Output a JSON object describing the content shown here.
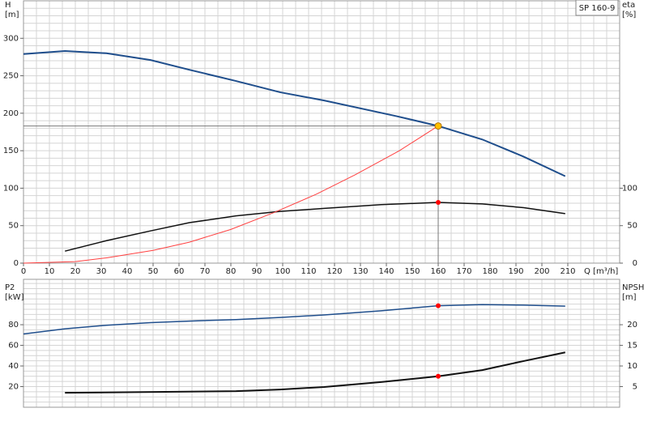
{
  "chart_data": [
    {
      "type": "line",
      "title": "SP 160-9",
      "y_label": [
        "H",
        "[m]"
      ],
      "y2_label": [
        "eta",
        "[%]"
      ],
      "x_label": "Q [m³/h]",
      "xlim": [
        0,
        230
      ],
      "xticks": [
        0,
        10,
        20,
        30,
        40,
        50,
        60,
        70,
        80,
        90,
        100,
        110,
        120,
        130,
        140,
        150,
        160,
        170,
        180,
        190,
        200,
        210
      ],
      "ylim": [
        0,
        350
      ],
      "yticks": [
        0,
        50,
        100,
        150,
        200,
        250,
        300
      ],
      "y2lim": [
        0,
        350
      ],
      "y2ticks": [
        0,
        50,
        100
      ],
      "grid": true,
      "grid_step": [
        5,
        10
      ],
      "operating_x": 160,
      "guide": true,
      "series": [
        {
          "color": "#1f4e8c",
          "width": 2,
          "marker_color": "#ffc000",
          "x": [
            0,
            16,
            32,
            49,
            64,
            82,
            99,
            116,
            144,
            160,
            177,
            193,
            209
          ],
          "values": [
            279,
            283,
            280,
            271,
            258,
            243,
            228,
            217,
            196,
            183,
            165,
            142,
            116
          ]
        },
        {
          "color": "#111111",
          "width": 1.5,
          "marker_color": "#ff0000",
          "axis": "y2",
          "x": [
            16,
            32,
            49,
            64,
            82,
            99,
            116,
            138,
            160,
            177,
            193,
            209
          ],
          "values": [
            16,
            30,
            43,
            54,
            63,
            69,
            73,
            78,
            81,
            79,
            74,
            66
          ]
        },
        {
          "color": "#ff4040",
          "width": 1,
          "x": [
            0,
            20,
            32,
            50,
            64,
            80,
            97,
            113,
            128,
            145,
            160
          ],
          "values": [
            0,
            2,
            7,
            17,
            28,
            45,
            68,
            92,
            118,
            150,
            183
          ]
        }
      ]
    },
    {
      "type": "line",
      "y_label": [
        "P2",
        "[kW]"
      ],
      "y2_label": [
        "NPSH",
        "[m]"
      ],
      "xlim": [
        0,
        230
      ],
      "ylim": [
        0,
        124
      ],
      "yticks": [
        20,
        40,
        60,
        80
      ],
      "y2lim": [
        0,
        31
      ],
      "y2ticks": [
        5,
        10,
        15,
        20
      ],
      "grid": true,
      "grid_step": [
        5,
        5
      ],
      "operating_x": 160,
      "series": [
        {
          "color": "#1f4e8c",
          "width": 1.5,
          "marker_color": "#ff0000",
          "x": [
            0,
            16,
            32,
            49,
            64,
            82,
            99,
            116,
            138,
            160,
            177,
            193,
            209
          ],
          "values": [
            71,
            76,
            79.5,
            82,
            83.5,
            85,
            87,
            89.5,
            93.5,
            98.4,
            99.5,
            99,
            98
          ]
        },
        {
          "color": "#111111",
          "width": 2,
          "marker_color": "#ff0000",
          "axis": "y2",
          "x": [
            16,
            82,
            99,
            116,
            138,
            160,
            177,
            193,
            209
          ],
          "values": [
            3.5,
            3.9,
            4.3,
            4.9,
            6.1,
            7.5,
            9,
            11.2,
            13.3
          ]
        }
      ]
    }
  ]
}
